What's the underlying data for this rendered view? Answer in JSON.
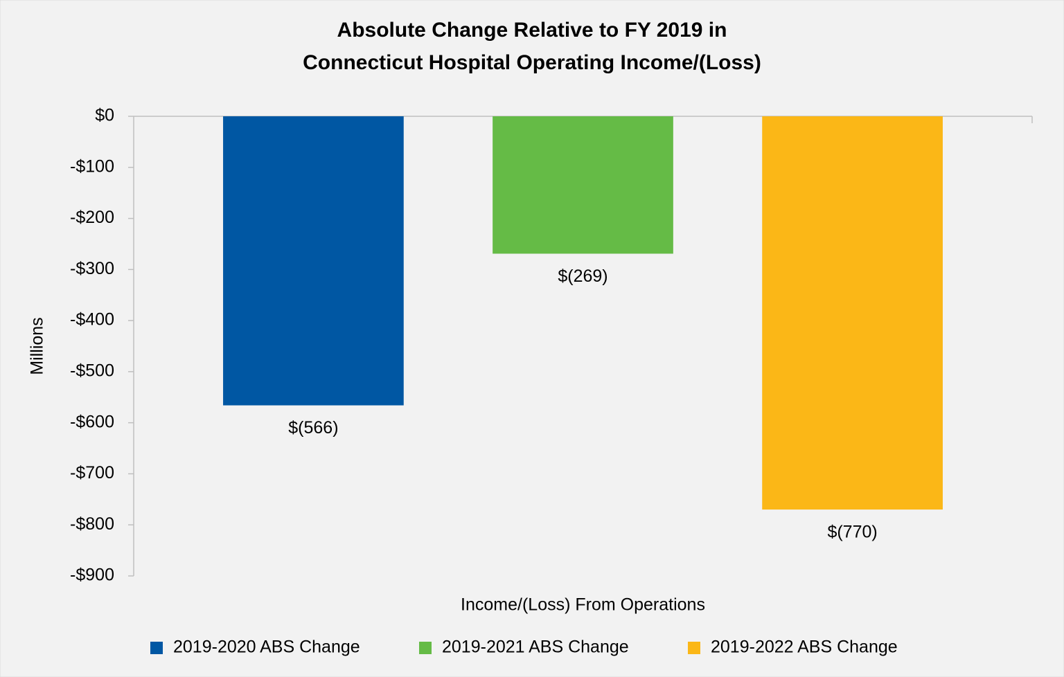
{
  "chart_data": {
    "type": "bar",
    "title": [
      "Absolute Change Relative to FY 2019 in",
      "Connecticut Hospital Operating Income/(Loss)"
    ],
    "y_label": "Millions",
    "categories": [
      "Income/(Loss) From Operations"
    ],
    "series": [
      {
        "name": "2019-2020 ABS Change",
        "color": "#0057a3",
        "values": [
          -566
        ],
        "value_labels": [
          "$(566)"
        ]
      },
      {
        "name": "2019-2021 ABS Change",
        "color": "#65bb46",
        "values": [
          -269
        ],
        "value_labels": [
          "$(269)"
        ]
      },
      {
        "name": "2019-2022 ABS Change",
        "color": "#fbb717",
        "values": [
          -770
        ],
        "value_labels": [
          "$(770)"
        ]
      }
    ],
    "value_label_color": "#e5352c",
    "ylim": [
      -900,
      0
    ],
    "yticks": [
      {
        "value": 0,
        "label": "$0"
      },
      {
        "value": -100,
        "label": "-$100"
      },
      {
        "value": -200,
        "label": "-$200"
      },
      {
        "value": -300,
        "label": "-$300"
      },
      {
        "value": -400,
        "label": "-$400"
      },
      {
        "value": -500,
        "label": "-$500"
      },
      {
        "value": -600,
        "label": "-$600"
      },
      {
        "value": -700,
        "label": "-$700"
      },
      {
        "value": -800,
        "label": "-$800"
      },
      {
        "value": -900,
        "label": "-$900"
      }
    ],
    "grid": false,
    "legend": "bottom"
  }
}
